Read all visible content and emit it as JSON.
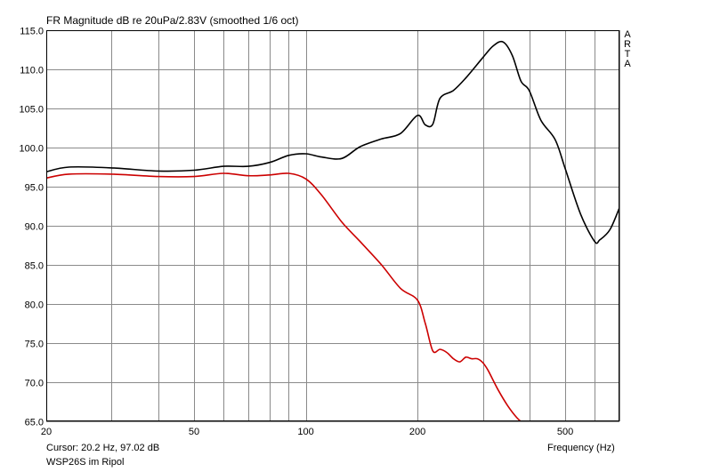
{
  "chart_data": {
    "type": "line",
    "title": "FR Magnitude dB re 20uPa/2.83V (smoothed 1/6 oct)",
    "brand_letters": [
      "A",
      "R",
      "T",
      "A"
    ],
    "xlabel": "Frequency (Hz)",
    "ylabel": "",
    "x_scale": "log",
    "xlim": [
      20,
      700
    ],
    "ylim": [
      65,
      115
    ],
    "grid": true,
    "x_ticks": [
      20,
      30,
      40,
      50,
      60,
      70,
      80,
      90,
      100,
      200,
      300,
      400,
      500,
      600,
      700
    ],
    "x_tick_labels": [
      {
        "value": 20,
        "label": "20"
      },
      {
        "value": 50,
        "label": "50"
      },
      {
        "value": 100,
        "label": "100"
      },
      {
        "value": 200,
        "label": "200"
      },
      {
        "value": 500,
        "label": "500"
      }
    ],
    "y_ticks": [
      "65.0",
      "70.0",
      "75.0",
      "80.0",
      "85.0",
      "90.0",
      "95.0",
      "100.0",
      "105.0",
      "110.0",
      "115.0"
    ],
    "series": [
      {
        "color": "#000000",
        "x": [
          20,
          23,
          30,
          40,
          50,
          60,
          70,
          80,
          90,
          100,
          110,
          125,
          140,
          160,
          180,
          200,
          210,
          220,
          230,
          250,
          270,
          300,
          320,
          340,
          360,
          380,
          400,
          430,
          470,
          500,
          550,
          600,
          620,
          660,
          700
        ],
        "y": [
          96.9,
          97.5,
          97.4,
          97.0,
          97.1,
          97.6,
          97.6,
          98.1,
          99.0,
          99.2,
          98.8,
          98.6,
          100.1,
          101.1,
          101.8,
          104.1,
          102.9,
          103.0,
          106.3,
          107.3,
          108.9,
          111.5,
          113.0,
          113.5,
          111.8,
          108.5,
          107.3,
          103.5,
          101.0,
          97.3,
          91.5,
          88.0,
          88.2,
          89.5,
          92.3
        ]
      },
      {
        "color": "#cc0000",
        "x": [
          20,
          23,
          30,
          40,
          50,
          60,
          70,
          80,
          90,
          100,
          110,
          125,
          140,
          160,
          180,
          200,
          210,
          220,
          230,
          240,
          250,
          260,
          270,
          280,
          290,
          300,
          310,
          330,
          350,
          370,
          390
        ],
        "y": [
          96.1,
          96.6,
          96.6,
          96.3,
          96.3,
          96.7,
          96.4,
          96.5,
          96.7,
          96.0,
          94.0,
          90.5,
          88.0,
          85.0,
          82.0,
          80.5,
          77.5,
          74.0,
          74.2,
          73.8,
          73.0,
          72.6,
          73.2,
          73.0,
          73.0,
          72.5,
          71.5,
          69.0,
          67.0,
          65.5,
          64.5
        ]
      }
    ]
  },
  "status": {
    "cursor": "Cursor: 20.2 Hz, 97.02 dB",
    "device": "WSP26S im Ripol"
  }
}
